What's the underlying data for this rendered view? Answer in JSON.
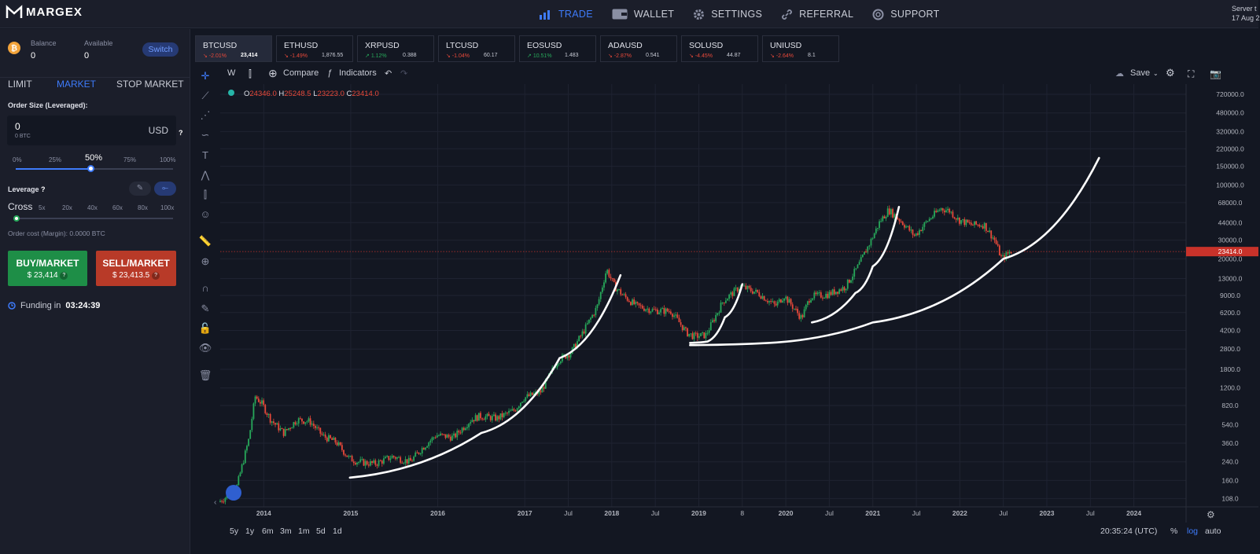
{
  "header": {
    "logo_text": "MARGEX",
    "nav": [
      {
        "label": "TRADE",
        "icon": "bar-chart-icon",
        "active": true
      },
      {
        "label": "WALLET",
        "icon": "wallet-icon",
        "active": false
      },
      {
        "label": "SETTINGS",
        "icon": "gear-icon",
        "active": false
      },
      {
        "label": "REFERRAL",
        "icon": "link-icon",
        "active": false
      },
      {
        "label": "SUPPORT",
        "icon": "lifebuoy-icon",
        "active": false
      }
    ],
    "server_label": "Server t",
    "server_date": "17 Aug 2"
  },
  "account": {
    "balance_label": "Balance",
    "balance_value": "0",
    "available_label": "Available",
    "available_value": "0",
    "switch_label": "Switch"
  },
  "order": {
    "tabs": [
      "LIMIT",
      "MARKET",
      "STOP MARKET"
    ],
    "active_tab": "MARKET",
    "size_label": "Order Size (Leveraged):",
    "size_value": "0",
    "size_sub": "0 BTC",
    "size_currency": "USD",
    "help": "?",
    "size_pct": [
      "0%",
      "25%",
      "50%",
      "75%",
      "100%"
    ],
    "selected_pct": "50%",
    "leverage_label": "Leverage",
    "leverage_mode": "Cross",
    "leverage_opts": [
      "5x",
      "20x",
      "40x",
      "60x",
      "80x",
      "100x"
    ],
    "cost_label": "Order cost (Margin): 0.0000 BTC",
    "buy_label": "BUY/MARKET",
    "buy_price": "$ 23,414",
    "sell_label": "SELL/MARKET",
    "sell_price": "$ 23,413.5",
    "funding_label": "Funding in",
    "funding_time": "03:24:39"
  },
  "tickers": [
    {
      "name": "BTCUSD",
      "change": "-2.01%",
      "price": "23,414",
      "dir": "down",
      "active": true
    },
    {
      "name": "ETHUSD",
      "change": "-1.49%",
      "price": "1,876.55",
      "dir": "down",
      "active": false
    },
    {
      "name": "XRPUSD",
      "change": "1.12%",
      "price": "0.388",
      "dir": "up",
      "active": false
    },
    {
      "name": "LTCUSD",
      "change": "-1.04%",
      "price": "60.17",
      "dir": "down",
      "active": false
    },
    {
      "name": "EOSUSD",
      "change": "10.51%",
      "price": "1.483",
      "dir": "up",
      "active": false
    },
    {
      "name": "ADAUSD",
      "change": "-2.87%",
      "price": "0.541",
      "dir": "down",
      "active": false
    },
    {
      "name": "SOLUSD",
      "change": "-4.45%",
      "price": "44.87",
      "dir": "down",
      "active": false
    },
    {
      "name": "UNIUSD",
      "change": "-2.64%",
      "price": "8.1",
      "dir": "down",
      "active": false
    }
  ],
  "toolbar": {
    "interval": "W",
    "compare": "Compare",
    "indicators": "Indicators",
    "save": "Save"
  },
  "ohlc": {
    "O": "24346.0",
    "H": "25248.5",
    "L": "23223.0",
    "C": "23414.0"
  },
  "colors": {
    "bg": "#131722",
    "panel": "#1b1e2a",
    "accent": "#3e7bfa",
    "up": "#27a85a",
    "down": "#e8493a",
    "current_price": "#c8322a"
  },
  "bottom": {
    "timeframes": [
      "5y",
      "1y",
      "6m",
      "3m",
      "1m",
      "5d",
      "1d"
    ],
    "clock": "20:35:24 (UTC)",
    "percent": "%",
    "log": "log",
    "auto": "auto"
  },
  "chart_data": {
    "type": "candlestick",
    "symbol": "BTCUSD",
    "scale": "log",
    "ylim": [
      90,
      900000
    ],
    "y_ticks": [
      "720000.0",
      "480000.0",
      "320000.0",
      "220000.0",
      "150000.0",
      "100000.0",
      "68000.0",
      "44000.0",
      "30000.0",
      "20000.0",
      "13000.0",
      "9000.0",
      "6200.0",
      "4200.0",
      "2800.0",
      "1800.0",
      "1200.0",
      "820.0",
      "540.0",
      "360.0",
      "240.0",
      "160.0",
      "108.0"
    ],
    "x_ticks": [
      "2014",
      "2015",
      "2016",
      "2017",
      "Jul",
      "2018",
      "Jul",
      "2019",
      "8",
      "2020",
      "Jul",
      "2021",
      "Jul",
      "2022",
      "Jul",
      "2023",
      "Jul",
      "2024"
    ],
    "current_price": 23414.0,
    "current_price_label": "23414.0",
    "series": [
      {
        "x": [
          2013.5,
          2013.7,
          2013.85,
          2013.92,
          2014.0,
          2014.1,
          2014.25,
          2014.4,
          2014.55,
          2014.7,
          2014.85,
          2015.0,
          2015.1,
          2015.3,
          2015.5,
          2015.7,
          2015.85,
          2016.0,
          2016.2,
          2016.4,
          2016.5,
          2016.7,
          2016.9,
          2017.0,
          2017.2,
          2017.4,
          2017.55,
          2017.7,
          2017.85,
          2017.96,
          2018.05,
          2018.15,
          2018.3,
          2018.5,
          2018.7,
          2018.88,
          2018.96,
          2019.1,
          2019.3,
          2019.5,
          2019.7,
          2019.9,
          2020.0,
          2020.2,
          2020.3,
          2020.5,
          2020.7,
          2020.85,
          2021.0,
          2021.1,
          2021.2,
          2021.35,
          2021.5,
          2021.65,
          2021.8,
          2021.9,
          2022.0,
          2022.15,
          2022.3,
          2022.42,
          2022.5,
          2022.6
        ],
        "close": [
          100,
          130,
          400,
          1000,
          850,
          600,
          450,
          600,
          580,
          420,
          370,
          260,
          240,
          230,
          270,
          240,
          330,
          430,
          410,
          600,
          650,
          620,
          740,
          960,
          1100,
          2200,
          2600,
          4200,
          7000,
          16000,
          11000,
          9000,
          7200,
          6500,
          6400,
          4000,
          3700,
          3800,
          8000,
          11000,
          9500,
          7200,
          9000,
          5500,
          8800,
          9200,
          10800,
          17000,
          30000,
          45000,
          58000,
          45000,
          33000,
          46000,
          60000,
          57000,
          47000,
          42000,
          42000,
          30000,
          20000,
          23414
        ]
      }
    ],
    "annotations": "five hand-drawn white curved trend lines"
  }
}
